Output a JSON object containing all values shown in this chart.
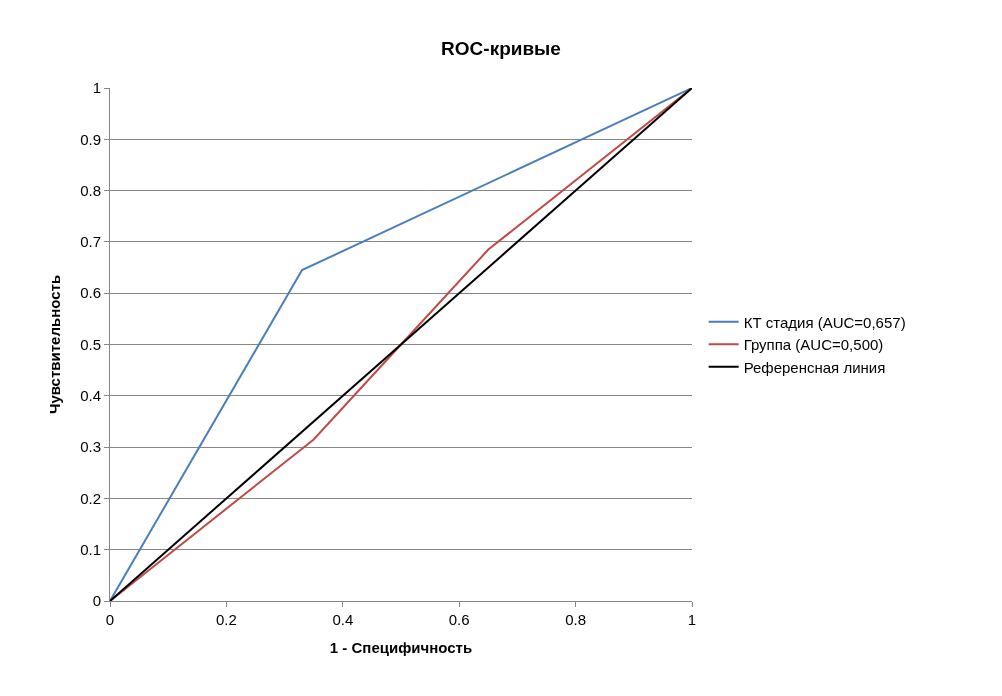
{
  "chart_data": {
    "type": "line",
    "title": "ROC-кривые",
    "xlabel": "1 - Специфичность",
    "ylabel": "Чувствительность",
    "xlim": [
      0,
      1
    ],
    "ylim": [
      0,
      1
    ],
    "xticks": [
      0,
      0.2,
      0.4,
      0.6,
      0.8,
      1
    ],
    "yticks": [
      0,
      0.1,
      0.2,
      0.3,
      0.4,
      0.5,
      0.6,
      0.7,
      0.8,
      0.9,
      1
    ],
    "grid": "y",
    "legend": "right",
    "marker": "none",
    "line_style": "solid",
    "series": [
      {
        "name": "КТ стадия (AUC=0,657)",
        "color": "#4a7ebb",
        "x": [
          0,
          0.33,
          1
        ],
        "values": [
          0,
          0.645,
          1
        ]
      },
      {
        "name": "Группа (AUC=0,500)",
        "color": "#be4b48",
        "x": [
          0,
          0.35,
          0.5,
          0.65,
          1
        ],
        "values": [
          0,
          0.315,
          0.5,
          0.685,
          1
        ]
      },
      {
        "name": "Референсная линия",
        "color": "#000000",
        "x": [
          0,
          1
        ],
        "values": [
          0,
          1
        ]
      }
    ]
  }
}
